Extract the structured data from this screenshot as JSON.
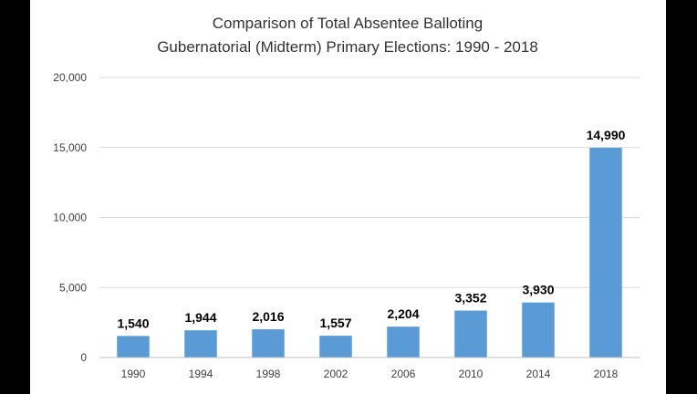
{
  "chart_data": {
    "type": "bar",
    "title": "Comparison of Total Absentee Balloting",
    "subtitle": "Gubernatorial (Midterm) Primary Elections: 1990 - 2018",
    "xlabel": "",
    "ylabel": "",
    "categories": [
      "1990",
      "1994",
      "1998",
      "2002",
      "2006",
      "2010",
      "2014",
      "2018"
    ],
    "values": [
      1540,
      1944,
      2016,
      1557,
      2204,
      3352,
      3930,
      14990
    ],
    "value_labels": [
      "1,540",
      "1,944",
      "2,016",
      "1,557",
      "2,204",
      "3,352",
      "3,930",
      "14,990"
    ],
    "ylim": [
      0,
      20000
    ],
    "y_ticks": [
      0,
      5000,
      10000,
      15000,
      20000
    ],
    "y_tick_labels": [
      "0",
      "5,000",
      "10,000",
      "15,000",
      "20,000"
    ],
    "grid": true,
    "legend": "none",
    "bar_color": "#5b9bd5"
  }
}
